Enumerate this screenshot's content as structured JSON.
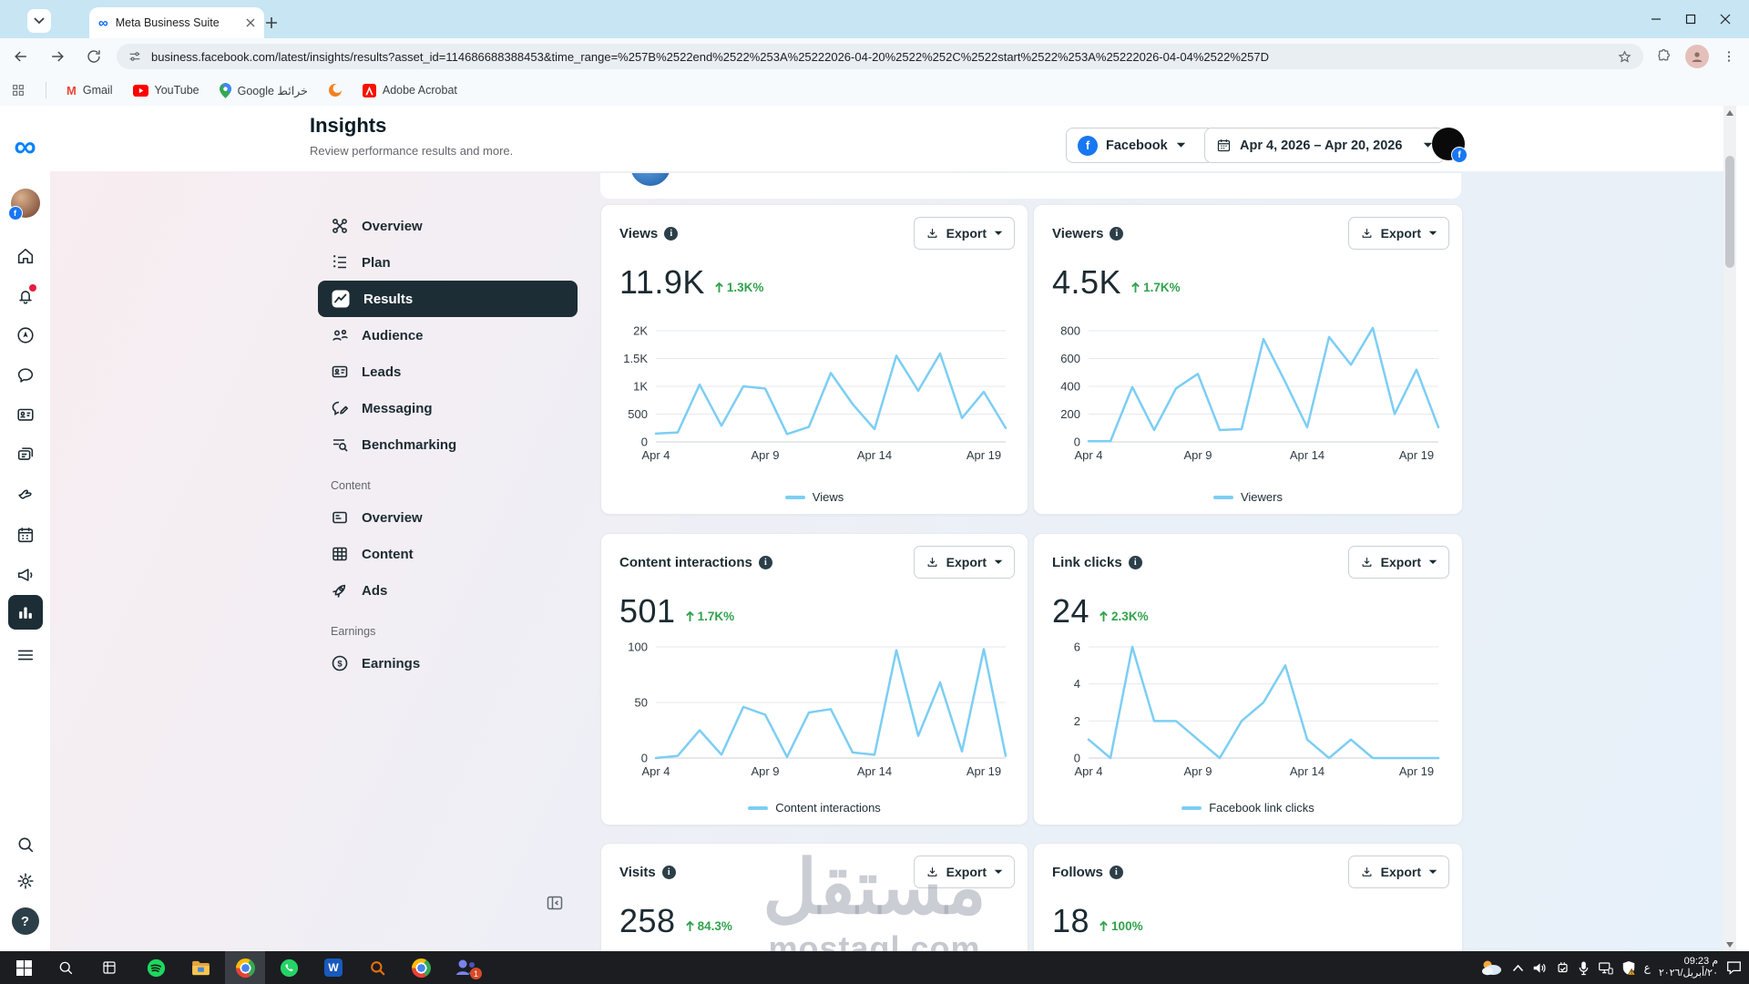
{
  "browser": {
    "tab_title": "Meta Business Suite",
    "url": "business.facebook.com/latest/insights/results?asset_id=114686688388453&time_range=%257B%2522end%2522%253A%25222026-04-20%2522%252C%2522start%2522%253A%25222026-04-04%2522%257D",
    "bookmarks": {
      "gmail": "Gmail",
      "youtube": "YouTube",
      "maps": "Google خرائط",
      "acrobat": "Adobe Acrobat"
    }
  },
  "icons": {
    "meta_logo": "∞",
    "facebook_f": "f",
    "gmail_m": "M",
    "acrobat_a": "A",
    "word_w": "W",
    "help": "?",
    "dollar": "$",
    "info": "i"
  },
  "header": {
    "title": "Insights",
    "subtitle": "Review performance results and more.",
    "platform": "Facebook",
    "date_range": "Apr 4, 2026 – Apr 20, 2026"
  },
  "nav": {
    "items": [
      {
        "label": "Overview"
      },
      {
        "label": "Plan"
      },
      {
        "label": "Results",
        "selected": true
      },
      {
        "label": "Audience"
      },
      {
        "label": "Leads"
      },
      {
        "label": "Messaging"
      },
      {
        "label": "Benchmarking"
      }
    ],
    "content_label": "Content",
    "content_items": [
      {
        "label": "Overview"
      },
      {
        "label": "Content"
      },
      {
        "label": "Ads"
      }
    ],
    "earnings_label": "Earnings",
    "earnings_items": [
      {
        "label": "Earnings"
      }
    ]
  },
  "labels": {
    "export": "Export"
  },
  "metrics": [
    {
      "title": "Views",
      "value": "11.9K",
      "delta": "1.3K%",
      "trend": "up"
    },
    {
      "title": "Viewers",
      "value": "4.5K",
      "delta": "1.7K%",
      "trend": "up"
    },
    {
      "title": "Content interactions",
      "value": "501",
      "delta": "1.7K%",
      "trend": "up"
    },
    {
      "title": "Link clicks",
      "value": "24",
      "delta": "2.3K%",
      "trend": "up"
    },
    {
      "title": "Visits",
      "value": "258",
      "delta": "84.3%",
      "trend": "up"
    },
    {
      "title": "Follows",
      "value": "18",
      "delta": "100%",
      "trend": "up"
    }
  ],
  "chart_data": [
    {
      "type": "line",
      "title": "Views",
      "legend": "Views",
      "color": "#7CCEF4",
      "grid": true,
      "legend_position": "bottom",
      "x": [
        "Apr 4",
        "Apr 5",
        "Apr 6",
        "Apr 7",
        "Apr 8",
        "Apr 9",
        "Apr 10",
        "Apr 11",
        "Apr 12",
        "Apr 13",
        "Apr 14",
        "Apr 15",
        "Apr 16",
        "Apr 17",
        "Apr 18",
        "Apr 19",
        "Apr 20"
      ],
      "values": [
        150,
        170,
        1030,
        290,
        1000,
        960,
        140,
        270,
        1240,
        680,
        230,
        1550,
        920,
        1590,
        430,
        900,
        250
      ],
      "ylim": [
        0,
        2000
      ],
      "yticks": [
        {
          "value": 0,
          "label": "0"
        },
        {
          "value": 500,
          "label": "500"
        },
        {
          "value": 1000,
          "label": "1K"
        },
        {
          "value": 1500,
          "label": "1.5K"
        },
        {
          "value": 2000,
          "label": "2K"
        }
      ],
      "xticks": [
        {
          "index": 0,
          "label": "Apr 4"
        },
        {
          "index": 5,
          "label": "Apr 9"
        },
        {
          "index": 10,
          "label": "Apr 14"
        },
        {
          "index": 15,
          "label": "Apr 19"
        }
      ]
    },
    {
      "type": "line",
      "title": "Viewers",
      "legend": "Viewers",
      "color": "#7CCEF4",
      "grid": true,
      "legend_position": "bottom",
      "x": [
        "Apr 4",
        "Apr 5",
        "Apr 6",
        "Apr 7",
        "Apr 8",
        "Apr 9",
        "Apr 10",
        "Apr 11",
        "Apr 12",
        "Apr 13",
        "Apr 14",
        "Apr 15",
        "Apr 16",
        "Apr 17",
        "Apr 18",
        "Apr 19",
        "Apr 20"
      ],
      "values": [
        5,
        5,
        395,
        85,
        385,
        490,
        85,
        92,
        740,
        430,
        105,
        755,
        555,
        820,
        200,
        520,
        105
      ],
      "ylim": [
        0,
        800
      ],
      "yticks": [
        {
          "value": 0,
          "label": "0"
        },
        {
          "value": 200,
          "label": "200"
        },
        {
          "value": 400,
          "label": "400"
        },
        {
          "value": 600,
          "label": "600"
        },
        {
          "value": 800,
          "label": "800"
        }
      ],
      "xticks": [
        {
          "index": 0,
          "label": "Apr 4"
        },
        {
          "index": 5,
          "label": "Apr 9"
        },
        {
          "index": 10,
          "label": "Apr 14"
        },
        {
          "index": 15,
          "label": "Apr 19"
        }
      ]
    },
    {
      "type": "line",
      "title": "Content interactions",
      "legend": "Content interactions",
      "color": "#7CCEF4",
      "grid": true,
      "legend_position": "bottom",
      "x": [
        "Apr 4",
        "Apr 5",
        "Apr 6",
        "Apr 7",
        "Apr 8",
        "Apr 9",
        "Apr 10",
        "Apr 11",
        "Apr 12",
        "Apr 13",
        "Apr 14",
        "Apr 15",
        "Apr 16",
        "Apr 17",
        "Apr 18",
        "Apr 19",
        "Apr 20"
      ],
      "values": [
        0,
        2,
        25,
        3,
        46,
        39,
        1,
        41,
        44,
        5,
        3,
        97,
        20,
        68,
        6,
        98,
        2
      ],
      "ylim": [
        0,
        100
      ],
      "yticks": [
        {
          "value": 0,
          "label": "0"
        },
        {
          "value": 50,
          "label": "50"
        },
        {
          "value": 100,
          "label": "100"
        }
      ],
      "xticks": [
        {
          "index": 0,
          "label": "Apr 4"
        },
        {
          "index": 5,
          "label": "Apr 9"
        },
        {
          "index": 10,
          "label": "Apr 14"
        },
        {
          "index": 15,
          "label": "Apr 19"
        }
      ]
    },
    {
      "type": "line",
      "title": "Link clicks",
      "legend": "Facebook link clicks",
      "color": "#7CCEF4",
      "grid": true,
      "legend_position": "bottom",
      "x": [
        "Apr 4",
        "Apr 5",
        "Apr 6",
        "Apr 7",
        "Apr 8",
        "Apr 9",
        "Apr 10",
        "Apr 11",
        "Apr 12",
        "Apr 13",
        "Apr 14",
        "Apr 15",
        "Apr 16",
        "Apr 17",
        "Apr 18",
        "Apr 19",
        "Apr 20"
      ],
      "values": [
        1,
        0,
        6,
        2,
        2,
        1,
        0,
        2,
        3,
        5,
        1,
        0,
        1,
        0,
        0,
        0,
        0
      ],
      "ylim": [
        0,
        6
      ],
      "yticks": [
        {
          "value": 0,
          "label": "0"
        },
        {
          "value": 2,
          "label": "2"
        },
        {
          "value": 4,
          "label": "4"
        },
        {
          "value": 6,
          "label": "6"
        }
      ],
      "xticks": [
        {
          "index": 0,
          "label": "Apr 4"
        },
        {
          "index": 5,
          "label": "Apr 9"
        },
        {
          "index": 10,
          "label": "Apr 14"
        },
        {
          "index": 15,
          "label": "Apr 19"
        }
      ]
    }
  ],
  "watermark": {
    "title": "مستقل",
    "site": "mostaql.com"
  },
  "taskbar": {
    "time": "09:23 م",
    "date": "٢٠/أبريل/٢٠٢٦",
    "lang": "ع",
    "badge": "1"
  },
  "colors": {
    "accent_blue": "#0866FF",
    "line": "#7CCEF4",
    "positive": "#31A24C",
    "selected_dark": "#1C2D35"
  }
}
